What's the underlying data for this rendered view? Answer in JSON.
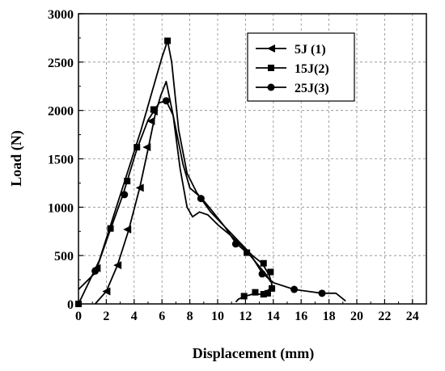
{
  "chart_data": {
    "type": "line",
    "xlabel": "Displacement (mm)",
    "ylabel": "Load (N)",
    "xlim": [
      0,
      25
    ],
    "ylim": [
      0,
      3000
    ],
    "x_ticks": [
      0,
      2,
      4,
      6,
      8,
      10,
      12,
      14,
      16,
      18,
      20,
      22,
      24
    ],
    "y_ticks": [
      0,
      500,
      1000,
      1500,
      2000,
      2500,
      3000
    ],
    "grid": "dashed",
    "legend_position": "top-right",
    "series": [
      {
        "name": "5J  (1)",
        "marker": "left-triangle",
        "line": [
          [
            1.2,
            0
          ],
          [
            2.0,
            130
          ],
          [
            2.8,
            400
          ],
          [
            3.6,
            760
          ],
          [
            4.4,
            1200
          ],
          [
            5.0,
            1600
          ],
          [
            5.5,
            1950
          ],
          [
            5.9,
            2150
          ],
          [
            6.3,
            2300
          ],
          [
            6.8,
            1950
          ],
          [
            7.3,
            1400
          ],
          [
            7.8,
            1000
          ],
          [
            8.2,
            900
          ],
          [
            8.7,
            950
          ],
          [
            9.3,
            920
          ],
          [
            10.0,
            820
          ],
          [
            11.0,
            700
          ],
          [
            12.0,
            560
          ],
          [
            12.8,
            420
          ],
          [
            13.5,
            300
          ],
          [
            13.8,
            230
          ]
        ],
        "markers": [
          [
            2.0,
            130
          ],
          [
            2.8,
            400
          ],
          [
            3.5,
            770
          ],
          [
            4.4,
            1200
          ],
          [
            4.9,
            1620
          ],
          [
            5.2,
            1890
          ],
          [
            5.4,
            1990
          ],
          [
            1.3,
            370
          ]
        ]
      },
      {
        "name": "15J(2)",
        "marker": "square",
        "line": [
          [
            0,
            0
          ],
          [
            0.5,
            150
          ],
          [
            1.5,
            450
          ],
          [
            2.5,
            900
          ],
          [
            3.5,
            1350
          ],
          [
            4.5,
            1800
          ],
          [
            5.5,
            2300
          ],
          [
            6.0,
            2550
          ],
          [
            6.4,
            2720
          ],
          [
            6.7,
            2500
          ],
          [
            7.2,
            1800
          ],
          [
            7.8,
            1350
          ],
          [
            8.5,
            1150
          ],
          [
            9.5,
            950
          ],
          [
            10.5,
            800
          ],
          [
            11.5,
            650
          ],
          [
            12.5,
            500
          ],
          [
            13.2,
            420
          ],
          [
            13.7,
            300
          ],
          [
            13.9,
            200
          ],
          [
            13.7,
            150
          ],
          [
            13.2,
            100
          ],
          [
            12.5,
            100
          ],
          [
            12.0,
            80
          ],
          [
            11.5,
            50
          ],
          [
            11.3,
            20
          ]
        ],
        "markers": [
          [
            0,
            0
          ],
          [
            2.3,
            780
          ],
          [
            3.5,
            1270
          ],
          [
            4.2,
            1620
          ],
          [
            5.4,
            2010
          ],
          [
            6.4,
            2720
          ],
          [
            12.1,
            530
          ],
          [
            13.3,
            420
          ],
          [
            13.8,
            330
          ],
          [
            13.9,
            160
          ],
          [
            13.6,
            110
          ],
          [
            13.3,
            100
          ],
          [
            12.7,
            120
          ],
          [
            11.9,
            80
          ]
        ]
      },
      {
        "name": "25J(3)",
        "marker": "circle",
        "line": [
          [
            0,
            150
          ],
          [
            1.2,
            320
          ],
          [
            2.0,
            650
          ],
          [
            3.2,
            1130
          ],
          [
            4.2,
            1600
          ],
          [
            5.0,
            1900
          ],
          [
            5.8,
            2080
          ],
          [
            6.3,
            2100
          ],
          [
            6.8,
            1950
          ],
          [
            7.5,
            1450
          ],
          [
            8.0,
            1200
          ],
          [
            8.8,
            1100
          ],
          [
            9.5,
            980
          ],
          [
            10.5,
            800
          ],
          [
            11.3,
            630
          ],
          [
            12.5,
            480
          ],
          [
            13.2,
            320
          ],
          [
            14.0,
            220
          ],
          [
            15.5,
            150
          ],
          [
            17.5,
            110
          ],
          [
            18.5,
            110
          ],
          [
            19.2,
            30
          ]
        ],
        "markers": [
          [
            1.2,
            340
          ],
          [
            3.3,
            1130
          ],
          [
            6.3,
            2100
          ],
          [
            8.8,
            1090
          ],
          [
            11.3,
            620
          ],
          [
            13.2,
            310
          ],
          [
            15.5,
            150
          ],
          [
            17.5,
            110
          ]
        ]
      }
    ]
  }
}
